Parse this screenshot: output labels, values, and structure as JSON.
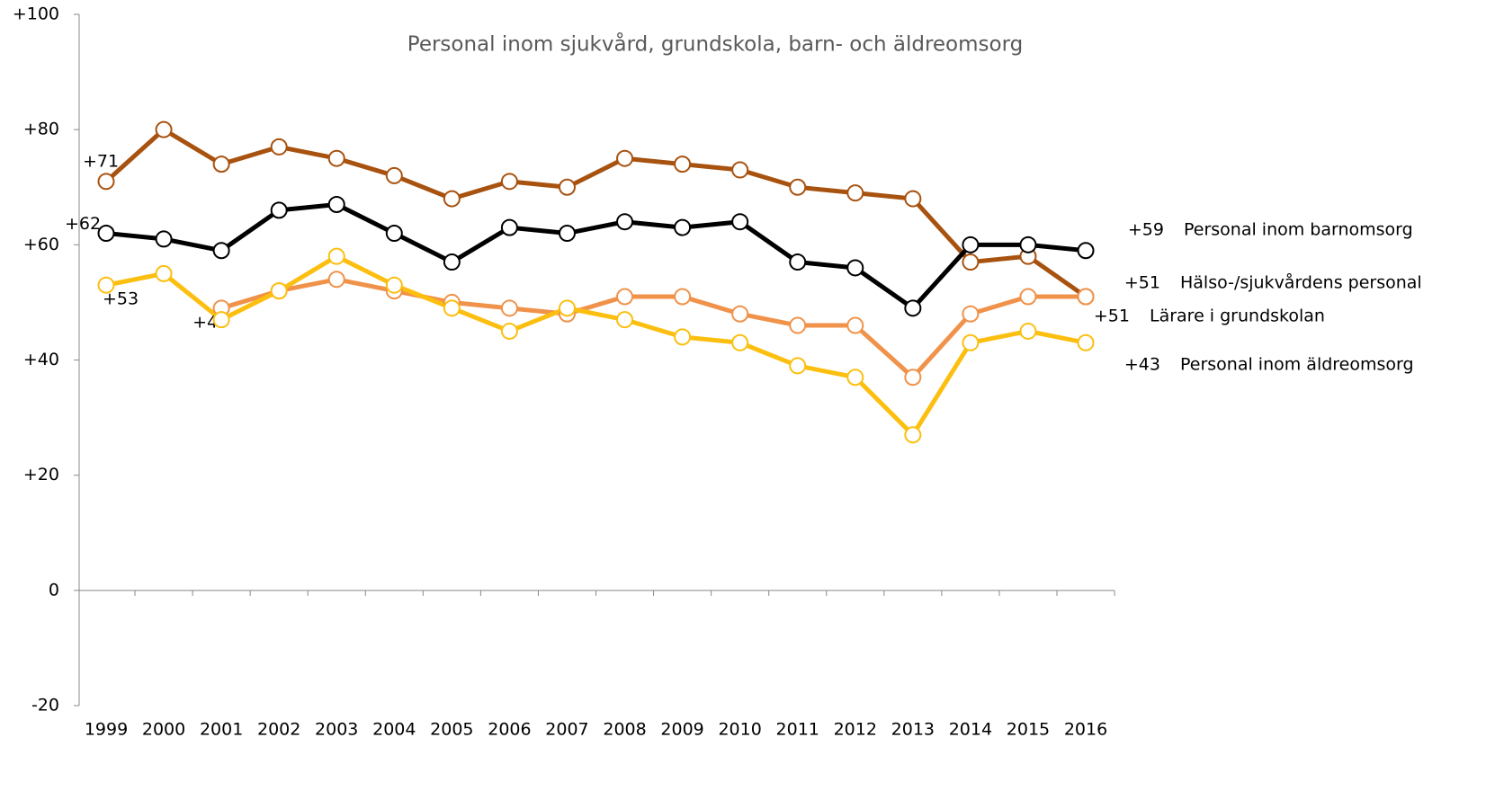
{
  "chart_data": {
    "type": "line",
    "title": "Personal inom sjukvård, grundskola, barn- och äldreomsorg",
    "categories": [
      "1999",
      "2000",
      "2001",
      "2002",
      "2003",
      "2004",
      "2005",
      "2006",
      "2007",
      "2008",
      "2009",
      "2010",
      "2011",
      "2012",
      "2013",
      "2014",
      "2015",
      "2016"
    ],
    "ylim": [
      -20,
      100
    ],
    "yticks": [
      {
        "value": -20,
        "label": "-20"
      },
      0,
      {
        "value": 20,
        "label": "+20"
      },
      {
        "value": 40,
        "label": "+40"
      },
      {
        "value": 60,
        "label": "+60"
      },
      {
        "value": 80,
        "label": "+80"
      },
      {
        "value": 100,
        "label": "+100"
      }
    ],
    "series": [
      {
        "name": "Hälso-/sjukvårdens personal",
        "color": "#a8520f",
        "values": [
          71,
          80,
          74,
          77,
          75,
          72,
          68,
          71,
          70,
          75,
          74,
          73,
          70,
          69,
          68,
          57,
          58,
          51
        ],
        "value_labels": [
          "+71",
          null,
          null,
          null,
          null,
          null,
          null,
          null,
          null,
          null,
          null,
          null,
          null,
          null,
          null,
          null,
          null,
          "+51"
        ]
      },
      {
        "name": "Personal inom barnomsorg",
        "color": "#000000",
        "values": [
          62,
          61,
          59,
          66,
          67,
          62,
          57,
          63,
          62,
          64,
          63,
          64,
          57,
          56,
          49,
          60,
          60,
          59
        ],
        "value_labels": [
          "+62",
          null,
          null,
          null,
          null,
          null,
          null,
          null,
          null,
          null,
          null,
          null,
          null,
          null,
          null,
          null,
          null,
          "+59"
        ]
      },
      {
        "name": "Lärare i grundskolan",
        "color": "#f0924a",
        "values": [
          null,
          null,
          49,
          52,
          54,
          52,
          50,
          49,
          48,
          51,
          51,
          48,
          46,
          46,
          37,
          48,
          51,
          51
        ],
        "value_labels": [
          null,
          null,
          "+49",
          null,
          null,
          null,
          null,
          null,
          null,
          null,
          null,
          null,
          null,
          null,
          null,
          null,
          null,
          "+51"
        ]
      },
      {
        "name": "Personal inom äldreomsorg",
        "color": "#fcbf10",
        "values": [
          53,
          55,
          47,
          52,
          58,
          53,
          49,
          45,
          49,
          47,
          44,
          43,
          39,
          37,
          27,
          43,
          45,
          43
        ],
        "value_labels": [
          "+53",
          null,
          null,
          null,
          null,
          null,
          null,
          null,
          null,
          null,
          null,
          null,
          null,
          null,
          null,
          null,
          null,
          "+43"
        ]
      }
    ]
  }
}
